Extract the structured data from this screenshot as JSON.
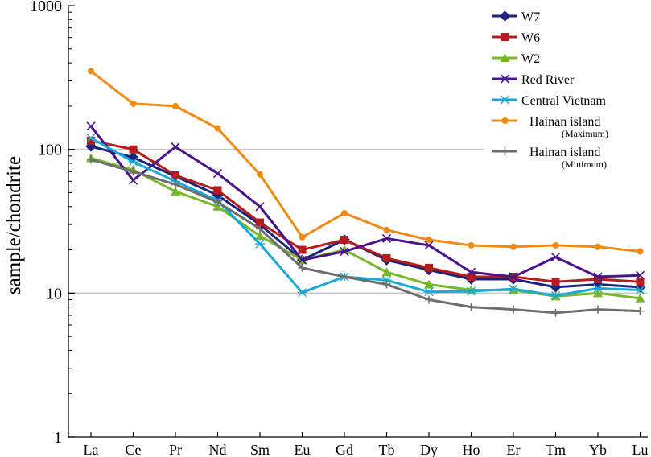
{
  "chart_data": {
    "type": "line",
    "title": "",
    "xlabel": "",
    "ylabel": "sample/chondrite",
    "yscale": "log",
    "ylim": [
      1,
      1000
    ],
    "y_ticks": [
      {
        "value": 1,
        "label": "1"
      },
      {
        "value": 10,
        "label": "10"
      },
      {
        "value": 100,
        "label": "100"
      },
      {
        "value": 1000,
        "label": "1000"
      }
    ],
    "gridlines": [
      10,
      100
    ],
    "categories": [
      "La",
      "Ce",
      "Pr",
      "Nd",
      "Sm",
      "Eu",
      "Gd",
      "Tb",
      "Dy",
      "Ho",
      "Er",
      "Tm",
      "Yb",
      "Lu"
    ],
    "legend_position": "top-right",
    "series": [
      {
        "name": "W7",
        "color": "#1a237e",
        "marker": "diamond",
        "values": [
          105,
          88,
          65,
          48,
          30,
          17,
          23.5,
          17,
          14.5,
          12.5,
          12.5,
          11,
          11.5,
          11
        ]
      },
      {
        "name": "W6",
        "color": "#b71c1c",
        "marker": "square",
        "values": [
          115,
          100,
          66,
          52,
          31,
          20,
          23.5,
          17.5,
          15,
          13,
          13,
          12,
          12.5,
          12
        ]
      },
      {
        "name": "W2",
        "color": "#76b82a",
        "marker": "triangle",
        "values": [
          87,
          72,
          51,
          40,
          25,
          17,
          20,
          14,
          11.5,
          10.5,
          10.5,
          9.5,
          10,
          9.2
        ]
      },
      {
        "name": "Red River",
        "color": "#4a148c",
        "marker": "x",
        "values": [
          145,
          61,
          104,
          68,
          40,
          17,
          19.5,
          24,
          21.5,
          14,
          13,
          17.8,
          13,
          13.3
        ]
      },
      {
        "name": "Central Vietnam",
        "color": "#19a8d8",
        "marker": "asterisk",
        "values": [
          120,
          82,
          60,
          44,
          22,
          10.1,
          13,
          12.3,
          10.2,
          10.3,
          10.7,
          9.6,
          10.8,
          10.5
        ]
      },
      {
        "name": "Hainan island",
        "sub": "(Maximum)",
        "color": "#f08a14",
        "marker": "circle",
        "values": [
          350,
          208,
          200,
          140,
          67,
          24.5,
          36,
          27.5,
          23.5,
          21.5,
          21,
          21.5,
          21,
          19.5
        ]
      },
      {
        "name": "Hainan island",
        "sub": "(Minimum)",
        "color": "#6e6e6e",
        "marker": "plus",
        "values": [
          85,
          70,
          57,
          43,
          28,
          15,
          13,
          11.5,
          9,
          8,
          7.7,
          7.3,
          7.7,
          7.5
        ]
      }
    ]
  }
}
